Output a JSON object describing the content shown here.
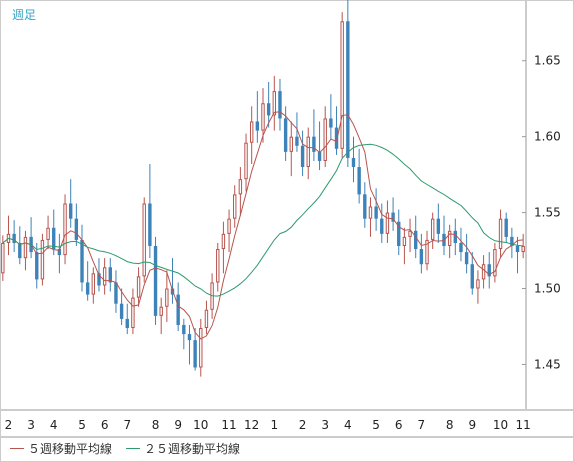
{
  "header": {
    "period_label": "週足"
  },
  "legend": {
    "items": [
      {
        "label": "５週移動平均線",
        "color": "#b8544e"
      },
      {
        "label": "２５週移動平均線",
        "color": "#2e9b6e"
      }
    ]
  },
  "colors": {
    "up": "#b8544e",
    "down": "#3d82b8",
    "grid": "#e8e8e8",
    "axis_text": "#222222",
    "frame": "#cccccc"
  },
  "chart_data": {
    "type": "candlestick",
    "ylim": [
      1.42,
      1.69
    ],
    "yticks": [
      1.45,
      1.5,
      1.55,
      1.6,
      1.65
    ],
    "ytick_labels": [
      "1.45",
      "1.50",
      "1.55",
      "1.60",
      "1.65"
    ],
    "xticks": [
      {
        "i": 1,
        "label": "2"
      },
      {
        "i": 5,
        "label": "3"
      },
      {
        "i": 9,
        "label": "4"
      },
      {
        "i": 14,
        "label": "5"
      },
      {
        "i": 18,
        "label": "6"
      },
      {
        "i": 22,
        "label": "7"
      },
      {
        "i": 27,
        "label": "8"
      },
      {
        "i": 31,
        "label": "9"
      },
      {
        "i": 35,
        "label": "10"
      },
      {
        "i": 40,
        "label": "11"
      },
      {
        "i": 44,
        "label": "12"
      },
      {
        "i": 48,
        "label": "1"
      },
      {
        "i": 53,
        "label": "2"
      },
      {
        "i": 57,
        "label": "3"
      },
      {
        "i": 61,
        "label": "4"
      },
      {
        "i": 66,
        "label": "5"
      },
      {
        "i": 70,
        "label": "6"
      },
      {
        "i": 74,
        "label": "7"
      },
      {
        "i": 79,
        "label": "8"
      },
      {
        "i": 83,
        "label": "9"
      },
      {
        "i": 88,
        "label": "10"
      },
      {
        "i": 92,
        "label": "11"
      }
    ],
    "candles": [
      [
        1.51,
        1.535,
        1.505,
        1.53
      ],
      [
        1.53,
        1.548,
        1.522,
        1.536
      ],
      [
        1.536,
        1.545,
        1.524,
        1.53
      ],
      [
        1.53,
        1.541,
        1.516,
        1.52
      ],
      [
        1.52,
        1.538,
        1.512,
        1.534
      ],
      [
        1.534,
        1.547,
        1.52,
        1.524
      ],
      [
        1.524,
        1.53,
        1.5,
        1.506
      ],
      [
        1.506,
        1.536,
        1.502,
        1.532
      ],
      [
        1.532,
        1.548,
        1.526,
        1.54
      ],
      [
        1.54,
        1.552,
        1.522,
        1.526
      ],
      [
        1.526,
        1.536,
        1.51,
        1.522
      ],
      [
        1.522,
        1.562,
        1.516,
        1.556
      ],
      [
        1.556,
        1.572,
        1.54,
        1.546
      ],
      [
        1.546,
        1.556,
        1.528,
        1.532
      ],
      [
        1.532,
        1.542,
        1.498,
        1.504
      ],
      [
        1.504,
        1.518,
        1.492,
        1.496
      ],
      [
        1.496,
        1.514,
        1.49,
        1.51
      ],
      [
        1.51,
        1.52,
        1.498,
        1.502
      ],
      [
        1.502,
        1.52,
        1.496,
        1.514
      ],
      [
        1.514,
        1.52,
        1.498,
        1.504
      ],
      [
        1.504,
        1.512,
        1.484,
        1.49
      ],
      [
        1.49,
        1.5,
        1.476,
        1.48
      ],
      [
        1.48,
        1.49,
        1.47,
        1.474
      ],
      [
        1.474,
        1.5,
        1.47,
        1.494
      ],
      [
        1.494,
        1.514,
        1.488,
        1.508
      ],
      [
        1.508,
        1.56,
        1.504,
        1.556
      ],
      [
        1.556,
        1.582,
        1.52,
        1.528
      ],
      [
        1.528,
        1.534,
        1.476,
        1.482
      ],
      [
        1.482,
        1.494,
        1.47,
        1.488
      ],
      [
        1.488,
        1.512,
        1.478,
        1.5
      ],
      [
        1.5,
        1.52,
        1.49,
        1.496
      ],
      [
        1.496,
        1.504,
        1.472,
        1.476
      ],
      [
        1.476,
        1.48,
        1.46,
        1.47
      ],
      [
        1.47,
        1.476,
        1.45,
        1.466
      ],
      [
        1.466,
        1.474,
        1.446,
        1.448
      ],
      [
        1.448,
        1.48,
        1.442,
        1.474
      ],
      [
        1.474,
        1.492,
        1.47,
        1.486
      ],
      [
        1.486,
        1.51,
        1.48,
        1.504
      ],
      [
        1.504,
        1.53,
        1.498,
        1.526
      ],
      [
        1.526,
        1.544,
        1.51,
        1.536
      ],
      [
        1.536,
        1.552,
        1.524,
        1.546
      ],
      [
        1.546,
        1.568,
        1.54,
        1.562
      ],
      [
        1.562,
        1.58,
        1.548,
        1.572
      ],
      [
        1.572,
        1.602,
        1.564,
        1.596
      ],
      [
        1.596,
        1.62,
        1.582,
        1.61
      ],
      [
        1.61,
        1.63,
        1.596,
        1.604
      ],
      [
        1.604,
        1.632,
        1.596,
        1.622
      ],
      [
        1.622,
        1.636,
        1.606,
        1.614
      ],
      [
        1.614,
        1.64,
        1.604,
        1.63
      ],
      [
        1.63,
        1.638,
        1.604,
        1.612
      ],
      [
        1.612,
        1.62,
        1.584,
        1.59
      ],
      [
        1.59,
        1.61,
        1.574,
        1.6
      ],
      [
        1.6,
        1.616,
        1.59,
        1.594
      ],
      [
        1.594,
        1.604,
        1.574,
        1.58
      ],
      [
        1.58,
        1.606,
        1.572,
        1.6
      ],
      [
        1.6,
        1.618,
        1.584,
        1.59
      ],
      [
        1.59,
        1.61,
        1.578,
        1.584
      ],
      [
        1.584,
        1.62,
        1.58,
        1.612
      ],
      [
        1.612,
        1.628,
        1.598,
        1.606
      ],
      [
        1.606,
        1.62,
        1.588,
        1.592
      ],
      [
        1.592,
        1.682,
        1.586,
        1.676
      ],
      [
        1.676,
        1.69,
        1.58,
        1.586
      ],
      [
        1.586,
        1.6,
        1.57,
        1.58
      ],
      [
        1.58,
        1.592,
        1.556,
        1.562
      ],
      [
        1.562,
        1.57,
        1.54,
        1.546
      ],
      [
        1.546,
        1.56,
        1.534,
        1.554
      ],
      [
        1.554,
        1.566,
        1.538,
        1.546
      ],
      [
        1.546,
        1.556,
        1.53,
        1.536
      ],
      [
        1.536,
        1.558,
        1.53,
        1.55
      ],
      [
        1.55,
        1.56,
        1.538,
        1.544
      ],
      [
        1.544,
        1.552,
        1.522,
        1.528
      ],
      [
        1.528,
        1.54,
        1.516,
        1.534
      ],
      [
        1.534,
        1.546,
        1.524,
        1.538
      ],
      [
        1.538,
        1.548,
        1.52,
        1.526
      ],
      [
        1.526,
        1.536,
        1.51,
        1.516
      ],
      [
        1.516,
        1.538,
        1.512,
        1.532
      ],
      [
        1.532,
        1.55,
        1.526,
        1.546
      ],
      [
        1.546,
        1.556,
        1.53,
        1.536
      ],
      [
        1.536,
        1.548,
        1.522,
        1.528
      ],
      [
        1.528,
        1.542,
        1.52,
        1.538
      ],
      [
        1.538,
        1.546,
        1.522,
        1.53
      ],
      [
        1.53,
        1.54,
        1.518,
        1.524
      ],
      [
        1.524,
        1.536,
        1.51,
        1.516
      ],
      [
        1.516,
        1.524,
        1.496,
        1.5
      ],
      [
        1.5,
        1.512,
        1.49,
        1.506
      ],
      [
        1.506,
        1.522,
        1.5,
        1.516
      ],
      [
        1.516,
        1.524,
        1.5,
        1.508
      ],
      [
        1.508,
        1.53,
        1.504,
        1.526
      ],
      [
        1.526,
        1.552,
        1.52,
        1.546
      ],
      [
        1.546,
        1.55,
        1.53,
        1.534
      ],
      [
        1.534,
        1.54,
        1.52,
        1.528
      ],
      [
        1.528,
        1.534,
        1.51,
        1.524
      ],
      [
        1.524,
        1.536,
        1.52,
        1.528
      ]
    ],
    "series": [
      {
        "name": "５週移動平均線",
        "window": 5
      },
      {
        "name": "２５週移動平均線",
        "window": 25
      }
    ],
    "grid": false,
    "legend_position": "bottom-left",
    "yaxis_position": "right"
  }
}
